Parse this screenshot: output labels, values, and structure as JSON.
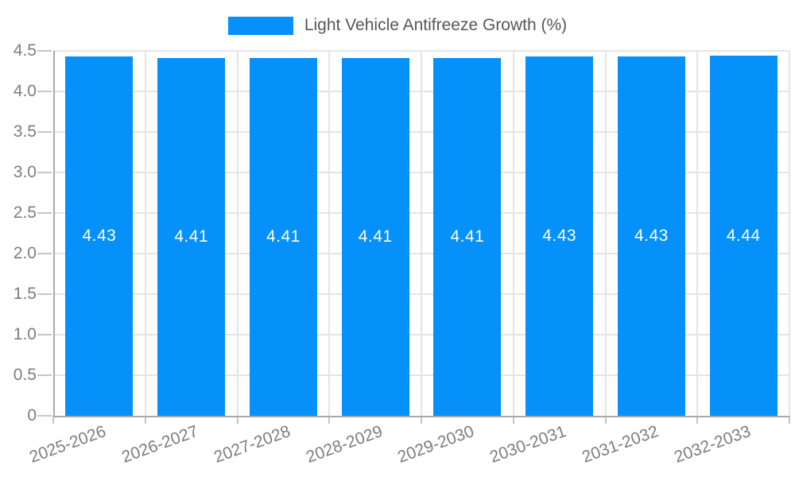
{
  "chart_data": {
    "type": "bar",
    "title": "",
    "categories": [
      "2025-2026",
      "2026-2027",
      "2027-2028",
      "2028-2029",
      "2029-2030",
      "2030-2031",
      "2031-2032",
      "2032-2033"
    ],
    "series": [
      {
        "name": "Light Vehicle Antifreeze Growth (%)",
        "values": [
          4.43,
          4.41,
          4.41,
          4.41,
          4.41,
          4.43,
          4.43,
          4.44
        ]
      }
    ],
    "bar_value_labels": [
      "4.43",
      "4.41",
      "4.41",
      "4.41",
      "4.41",
      "4.43",
      "4.43",
      "4.44"
    ],
    "xlabel": "",
    "ylabel": "",
    "ylim": [
      0,
      4.5
    ],
    "ytick_step": 0.5,
    "ytick_labels": [
      "0",
      "0.5",
      "1.0",
      "1.5",
      "2.0",
      "2.5",
      "3.0",
      "3.5",
      "4.0",
      "4.5"
    ],
    "grid": true,
    "legend_position": "top-center",
    "colors": {
      "bar": "#0690fa",
      "axis_line": "#aaaaaa",
      "gridline": "#e4e4e4",
      "tick": "#c6c6c6",
      "tick_label": "#7d7d7d",
      "legend_text": "#565656",
      "bar_label": "#ffffff",
      "background": "#ffffff"
    }
  }
}
